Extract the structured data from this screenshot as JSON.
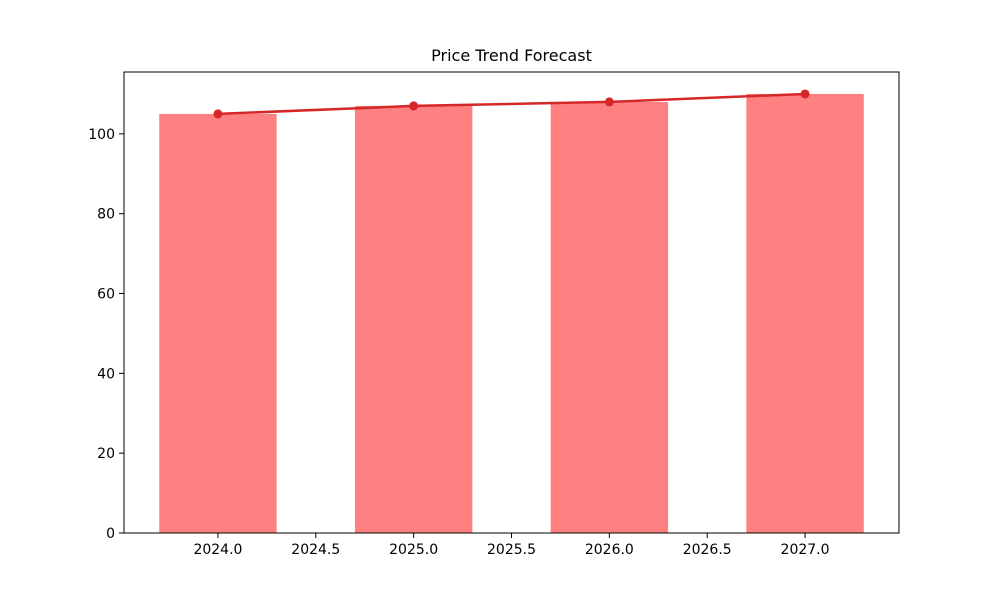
{
  "figure": {
    "background": "#ffffff"
  },
  "chart_data": {
    "type": "bar",
    "title": "Price Trend Forecast",
    "xlabel": "",
    "ylabel": "",
    "x": [
      2024,
      2025,
      2026,
      2027
    ],
    "series": [
      {
        "name": "price-bars",
        "type": "bar",
        "values": [
          105,
          107,
          108,
          110
        ],
        "color": "#ff8080",
        "bar_width": 0.6
      },
      {
        "name": "price-trend-line",
        "type": "line",
        "values": [
          105,
          107,
          108,
          110
        ],
        "color": "#d62728",
        "line_width": 2.5,
        "marker": "circle",
        "marker_radius": 4.5
      }
    ],
    "xlim": [
      2023.52,
      2027.48
    ],
    "ylim": [
      0,
      115.5
    ],
    "xticks": {
      "values": [
        2024.0,
        2024.5,
        2025.0,
        2025.5,
        2026.0,
        2026.5,
        2027.0
      ],
      "labels": [
        "2024.0",
        "2024.5",
        "2025.0",
        "2025.5",
        "2026.0",
        "2026.5",
        "2027.0"
      ]
    },
    "yticks": {
      "values": [
        0,
        20,
        40,
        60,
        80,
        100
      ],
      "labels": [
        "0",
        "20",
        "40",
        "60",
        "80",
        "100"
      ]
    },
    "grid": false,
    "legend": null,
    "axes_color": "#000000",
    "text_color": "#000000",
    "tick_length": 5
  }
}
